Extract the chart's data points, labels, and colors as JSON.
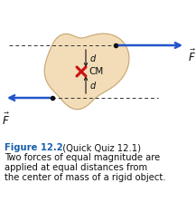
{
  "fig_width": 2.17,
  "fig_height": 2.34,
  "dpi": 100,
  "background_color": "#ffffff",
  "body_color": "#f2ddb8",
  "body_edge_color": "#c8a46e",
  "arrow_color": "#2255cc",
  "dashed_color": "#333333",
  "cm_cross_color": "#cc1111",
  "dot_color": "#111111",
  "label_color": "#111111",
  "figure_label_color": "#1a5faa",
  "caption_line1": "Figure 12.2",
  "caption_rest": "  (Quick Quiz 12.1)",
  "caption_line2": "Two forces of equal magnitude are",
  "caption_line3": "applied at equal distances from",
  "caption_line4": "the center of mass of a rigid object.",
  "font_size_caption": 7.2,
  "font_size_label": 7.0
}
